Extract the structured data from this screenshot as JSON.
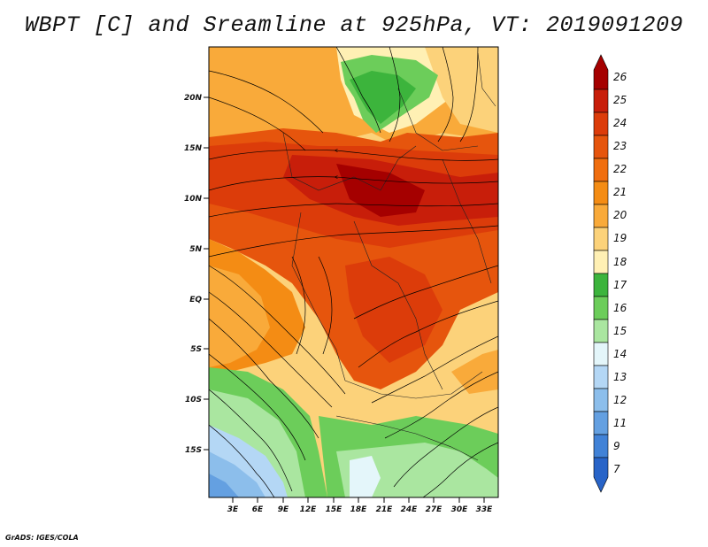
{
  "title": "WBPT [C] and Sreamline at 925hPa, VT: 2019091209",
  "credit": "GrADS: IGES/COLA",
  "lat_labels": [
    "20N",
    "15N",
    "10N",
    "5N",
    "EQ",
    "5S",
    "10S",
    "15S"
  ],
  "lon_labels": [
    "3E",
    "6E",
    "9E",
    "12E",
    "15E",
    "18E",
    "21E",
    "24E",
    "27E",
    "30E",
    "33E"
  ],
  "colorbar": {
    "labels": [
      "26",
      "25",
      "24",
      "23",
      "22",
      "21",
      "20",
      "19",
      "18",
      "17",
      "16",
      "15",
      "14",
      "13",
      "12",
      "11",
      "9",
      "7"
    ],
    "colors": [
      "#a50000",
      "#c81e0a",
      "#dc3c0a",
      "#e6550d",
      "#f06e0f",
      "#f48c14",
      "#f9aa3a",
      "#fcd27a",
      "#fff0b4",
      "#3cb43c",
      "#6ccd5a",
      "#aae6a0",
      "#e4f6fa",
      "#b4d7f5",
      "#8cbeeb",
      "#64a0e1",
      "#4182d7",
      "#2864c8"
    ]
  }
}
